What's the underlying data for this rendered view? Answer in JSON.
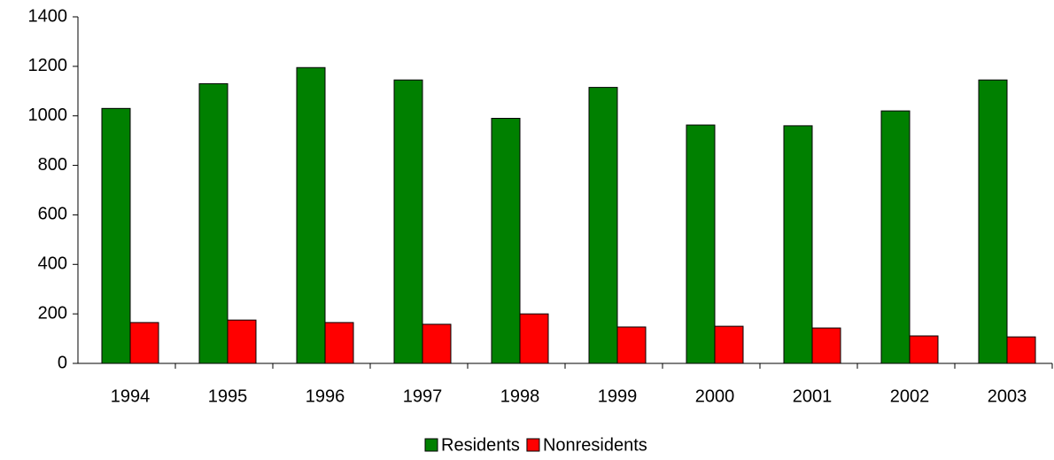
{
  "chart_data": {
    "type": "bar",
    "categories": [
      "1994",
      "1995",
      "1996",
      "1997",
      "1998",
      "1999",
      "2000",
      "2001",
      "2002",
      "2003"
    ],
    "series": [
      {
        "name": "Residents",
        "color": "#008000",
        "values": [
          1030,
          1130,
          1195,
          1145,
          990,
          1115,
          963,
          960,
          1020,
          1145
        ]
      },
      {
        "name": "Nonresidents",
        "color": "#ff0000",
        "values": [
          165,
          175,
          165,
          158,
          200,
          147,
          150,
          143,
          111,
          107
        ]
      }
    ],
    "ylim": [
      0,
      1400
    ],
    "yticks": [
      0,
      200,
      400,
      600,
      800,
      1000,
      1200,
      1400
    ],
    "grid": false,
    "legend": "bottom"
  }
}
